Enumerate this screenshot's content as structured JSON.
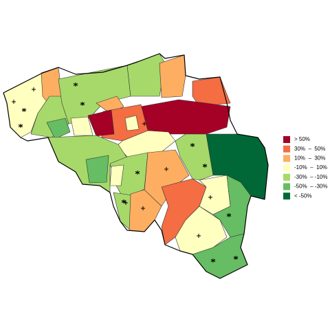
{
  "legend": {
    "items": [
      {
        "label": "> 50%",
        "color": "#a50026"
      },
      {
        "label": "30%  –  50%",
        "color": "#f46d43"
      },
      {
        "label": "10%  –  30%",
        "color": "#fdae61"
      },
      {
        "label": "-10%  –  10%",
        "color": "#ffffbf"
      },
      {
        "label": "-30%  – -10%",
        "color": "#a6d96a"
      },
      {
        "label": "-50%  – -30%",
        "color": "#66bd63"
      },
      {
        "label": "< -50%",
        "color": "#006837"
      }
    ]
  }
}
